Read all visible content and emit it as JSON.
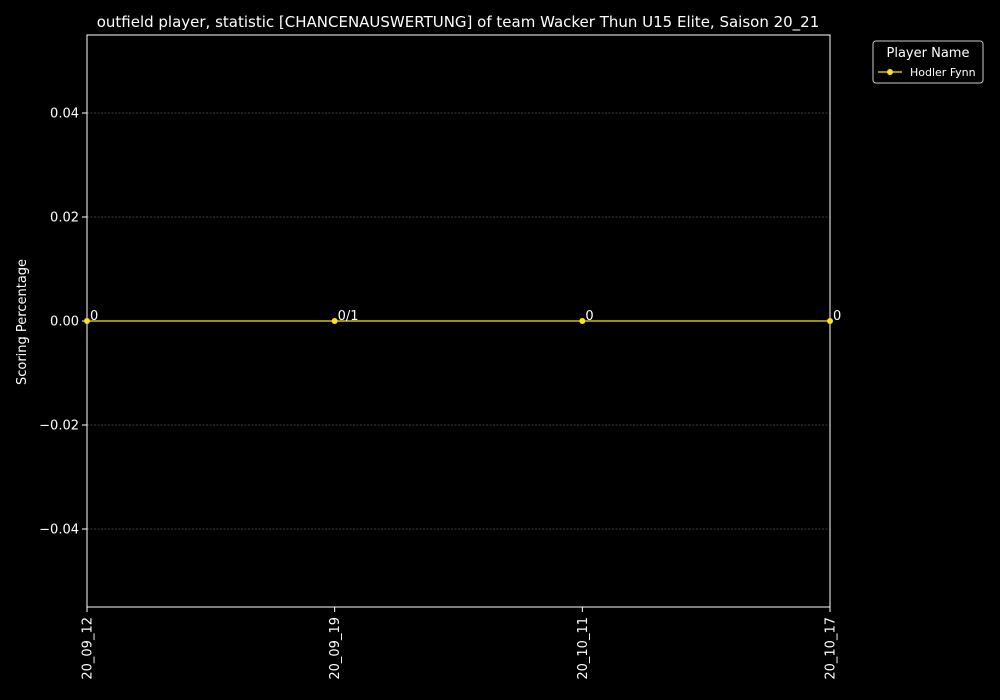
{
  "colors": {
    "background": "#000000",
    "axes": "#ffffff",
    "grid": "#808080",
    "series": "#ffe21a"
  },
  "chart_data": {
    "type": "line",
    "title": "outfield player, statistic [CHANCENAUSWERTUNG] of team Wacker Thun U15 Elite, Saison 20_21",
    "xlabel": "",
    "ylabel": "Scoring Percentage",
    "x": [
      "20_09_12",
      "20_09_19",
      "20_10_11",
      "20_10_17"
    ],
    "ylim": [
      -0.055,
      0.055
    ],
    "yticks": [
      -0.04,
      -0.02,
      0.0,
      0.02,
      0.04
    ],
    "ytick_labels": [
      "−0.04",
      "−0.02",
      "0.00",
      "0.02",
      "0.04"
    ],
    "grid": true,
    "legend": {
      "title": "Player Name",
      "placement": "outside-top-right"
    },
    "series": [
      {
        "name": "Hodler Fynn",
        "color": "#ffe21a",
        "values": [
          0,
          0,
          0,
          0
        ],
        "point_labels": [
          "0",
          "0/1",
          "0",
          "0"
        ]
      }
    ]
  }
}
